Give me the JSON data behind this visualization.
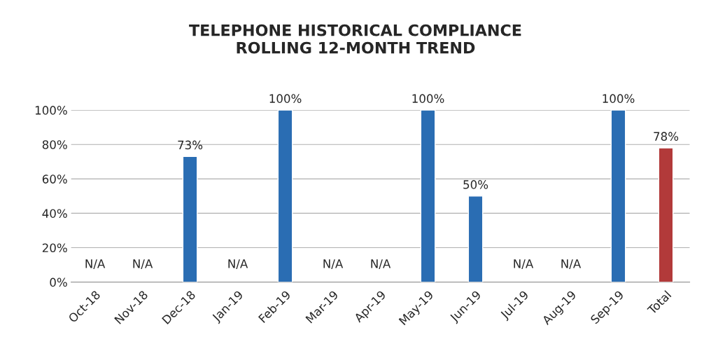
{
  "chart_data": {
    "type": "bar",
    "title": "TELEPHONE HISTORICAL COMPLIANCE\nROLLING 12-MONTH TREND",
    "categories": [
      "Oct-18",
      "Nov-18",
      "Dec-18",
      "Jan-19",
      "Feb-19",
      "Mar-19",
      "Apr-19",
      "May-19",
      "Jun-19",
      "Jul-19",
      "Aug-19",
      "Sep-19",
      "Total"
    ],
    "values": [
      null,
      null,
      73,
      null,
      100,
      null,
      null,
      100,
      50,
      null,
      null,
      100,
      78
    ],
    "value_labels": [
      "N/A",
      "N/A",
      "73%",
      "N/A",
      "100%",
      "N/A",
      "N/A",
      "100%",
      "50%",
      "N/A",
      "N/A",
      "100%",
      "78%"
    ],
    "colors": [
      "#2a6db3",
      "#2a6db3",
      "#2a6db3",
      "#2a6db3",
      "#2a6db3",
      "#2a6db3",
      "#2a6db3",
      "#2a6db3",
      "#2a6db3",
      "#2a6db3",
      "#2a6db3",
      "#2a6db3",
      "#b23a3a"
    ],
    "ylim": [
      0,
      100
    ],
    "yticks": [
      {
        "value": 0,
        "label": "0%"
      },
      {
        "value": 20,
        "label": "20%"
      },
      {
        "value": 40,
        "label": "40%"
      },
      {
        "value": 60,
        "label": "60%"
      },
      {
        "value": 80,
        "label": "80%"
      },
      {
        "value": 100,
        "label": "100%"
      }
    ],
    "grid": "y",
    "legend": false
  }
}
